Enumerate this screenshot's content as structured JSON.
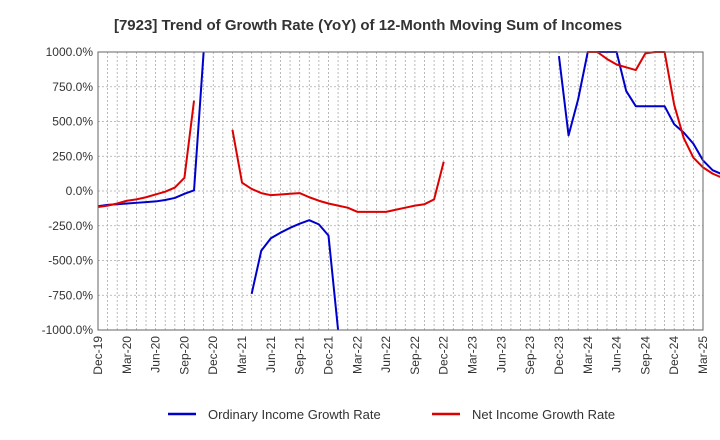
{
  "chart_data": {
    "type": "line",
    "title": "[7923]  Trend of Growth Rate (YoY) of 12-Month Moving Sum of Incomes",
    "xlabel": "",
    "ylabel": "",
    "ylim": [
      -1000,
      1000
    ],
    "y_ticks": [
      1000,
      750,
      500,
      250,
      0,
      -250,
      -500,
      -750,
      -1000
    ],
    "y_tick_labels": [
      "1000.0%",
      "750.0%",
      "500.0%",
      "250.0%",
      "0.0%",
      "-250.0%",
      "-500.0%",
      "-750.0%",
      "-1000.0%"
    ],
    "x_tick_labels": [
      "Dec-19",
      "Mar-20",
      "Jun-20",
      "Sep-20",
      "Dec-20",
      "Mar-21",
      "Jun-21",
      "Sep-21",
      "Dec-21",
      "Mar-22",
      "Jun-22",
      "Sep-22",
      "Dec-22",
      "Mar-23",
      "Jun-23",
      "Sep-23",
      "Dec-23",
      "Mar-24",
      "Jun-24",
      "Sep-24",
      "Dec-24",
      "Mar-25"
    ],
    "grid": true,
    "legend_position": "bottom",
    "series": [
      {
        "name": "Ordinary Income Growth Rate",
        "color": "#0000cc",
        "values": [
          -110,
          -100,
          -95,
          -90,
          -85,
          -80,
          -75,
          -65,
          -50,
          -20,
          5,
          1000,
          null,
          null,
          null,
          null,
          -740,
          -430,
          -340,
          -300,
          -265,
          -235,
          -210,
          -240,
          -320,
          -1000,
          null,
          null,
          null,
          null,
          null,
          null,
          null,
          null,
          null,
          null,
          null,
          null,
          null,
          null,
          null,
          null,
          null,
          null,
          null,
          null,
          null,
          null,
          970,
          400,
          660,
          1000,
          1000,
          1000,
          1000,
          720,
          610,
          610,
          610,
          610,
          480,
          420,
          340,
          220,
          150,
          120
        ]
      },
      {
        "name": "Net Income Growth Rate",
        "color": "#dd0000",
        "values": [
          -115,
          -105,
          -90,
          -70,
          -60,
          -45,
          -25,
          -5,
          25,
          95,
          650,
          null,
          null,
          null,
          440,
          60,
          15,
          -15,
          -30,
          -25,
          -20,
          -15,
          -45,
          -70,
          -90,
          -105,
          -120,
          -150,
          -150,
          -150,
          -150,
          -135,
          -120,
          -105,
          -95,
          -60,
          210,
          null,
          null,
          null,
          null,
          null,
          null,
          null,
          null,
          null,
          null,
          null,
          null,
          null,
          null,
          1000,
          1000,
          950,
          910,
          890,
          870,
          990,
          1000,
          1000,
          620,
          380,
          240,
          170,
          125,
          95
        ]
      }
    ]
  }
}
